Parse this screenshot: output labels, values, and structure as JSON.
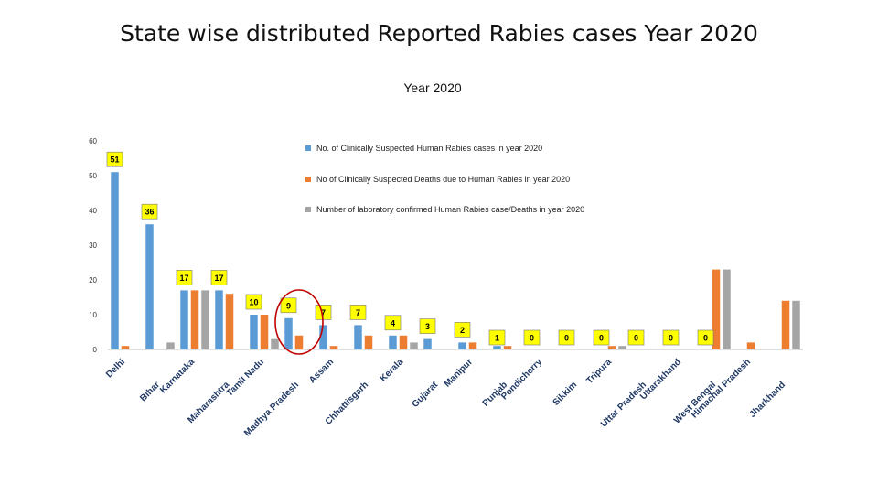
{
  "slide": {
    "title": "State wise distributed Reported Rabies cases Year 2020"
  },
  "chart_data": {
    "type": "bar",
    "title": "Year 2020",
    "xlabel": "",
    "ylabel": "",
    "ylim": [
      0,
      60
    ],
    "yticks": [
      0,
      10,
      20,
      30,
      40,
      50,
      60
    ],
    "grid": false,
    "legend_position": "top-right",
    "categories": [
      "Delhi",
      "Bihar",
      "Karnataka",
      "Maharashtra",
      "Tamil Nadu",
      "Madhya Pradesh",
      "Assam",
      "Chhattisgarh",
      "Kerala",
      "Gujarat",
      "Manipur",
      "Punjab",
      "Pondicherry",
      "Sikkim",
      "Tripura",
      "Uttar Pradesh",
      "Uttarakhand",
      "West Bengal",
      "Himachal Pradesh",
      "Jharkhand"
    ],
    "series": [
      {
        "name": "No. of Clinically Suspected Human Rabies cases in year 2020",
        "color": "#5b9bd5",
        "values": [
          51,
          36,
          17,
          17,
          10,
          9,
          7,
          7,
          4,
          3,
          2,
          1,
          0,
          0,
          0,
          0,
          0,
          0,
          0,
          0
        ]
      },
      {
        "name": "No of Clinically Suspected Deaths due to Human Rabies in year 2020",
        "color": "#ed7d31",
        "values": [
          1,
          0,
          17,
          16,
          10,
          4,
          1,
          4,
          4,
          0,
          2,
          1,
          0,
          0,
          1,
          0,
          0,
          23,
          2,
          14
        ]
      },
      {
        "name": "Number of laboratory confirmed Human Rabies case/Deaths in year 2020",
        "color": "#a5a5a5",
        "values": [
          0,
          2,
          17,
          0,
          3,
          0,
          0,
          0,
          2,
          0,
          0,
          0,
          0,
          0,
          1,
          0,
          0,
          23,
          0,
          14
        ]
      }
    ],
    "data_labels": [
      {
        "category": "Delhi",
        "text": "51"
      },
      {
        "category": "Bihar",
        "text": "36"
      },
      {
        "category": "Karnataka",
        "text": "17"
      },
      {
        "category": "Maharashtra",
        "text": "17"
      },
      {
        "category": "Tamil Nadu",
        "text": "10"
      },
      {
        "category": "Madhya Pradesh",
        "text": "9"
      },
      {
        "category": "Assam",
        "text": "7"
      },
      {
        "category": "Chhattisgarh",
        "text": "7"
      },
      {
        "category": "Kerala",
        "text": "4"
      },
      {
        "category": "Gujarat",
        "text": "3"
      },
      {
        "category": "Manipur",
        "text": "2"
      },
      {
        "category": "Punjab",
        "text": "1"
      },
      {
        "category": "Pondicherry",
        "text": "0"
      },
      {
        "category": "Sikkim",
        "text": "0"
      },
      {
        "category": "Tripura",
        "text": "0"
      },
      {
        "category": "Uttar Pradesh",
        "text": "0"
      },
      {
        "category": "Uttarakhand",
        "text": "0"
      },
      {
        "category": "West Bengal",
        "text": "0"
      }
    ],
    "annotations": [
      {
        "type": "ellipse-highlight",
        "category": "Madhya Pradesh",
        "color": "#c00000"
      }
    ]
  }
}
